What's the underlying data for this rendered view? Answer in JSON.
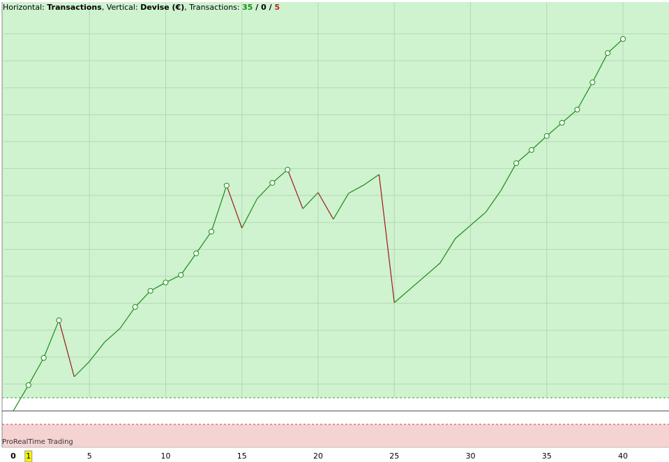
{
  "chart_data": {
    "type": "line",
    "header": {
      "h_label": "Horizontal: ",
      "h_value": "Transactions",
      "v_label": ", Vertical: ",
      "v_value": "Devise (€)",
      "t_label": ", Transactions: ",
      "sep": " / "
    },
    "stats": {
      "winning": 35,
      "neutral": 0,
      "losing": 5
    },
    "watermark": "ProRealTime Trading",
    "x": [
      0,
      1,
      2,
      3,
      4,
      5,
      6,
      7,
      8,
      9,
      10,
      11,
      12,
      13,
      14,
      15,
      16,
      17,
      18,
      19,
      20,
      21,
      22,
      23,
      24,
      25,
      26,
      27,
      28,
      29,
      30,
      31,
      32,
      33,
      34,
      35,
      36,
      37,
      38,
      39,
      40
    ],
    "values": [
      0,
      0.96,
      1.97,
      3.37,
      1.27,
      1.84,
      2.56,
      3.06,
      3.86,
      4.46,
      4.77,
      5.05,
      5.85,
      6.66,
      8.37,
      6.79,
      7.88,
      8.47,
      8.96,
      7.51,
      8.11,
      7.12,
      8.08,
      8.39,
      8.78,
      4.02,
      4.51,
      5.0,
      5.49,
      6.4,
      6.89,
      7.38,
      8.19,
      9.2,
      9.69,
      10.21,
      10.7,
      11.19,
      12.2,
      13.29,
      13.81
    ],
    "up_color": "#1a8a1a",
    "down_color": "#a01818",
    "xlim": [
      -0.73,
      43.02
    ],
    "xticks": [
      0,
      1,
      5,
      10,
      15,
      20,
      25,
      30,
      35,
      40
    ],
    "ylim": [
      -1.35,
      15.18
    ],
    "ygrid": [
      1,
      2,
      3,
      4,
      5,
      6,
      7,
      8,
      9,
      10,
      11,
      12,
      13,
      14
    ],
    "grid": true
  }
}
